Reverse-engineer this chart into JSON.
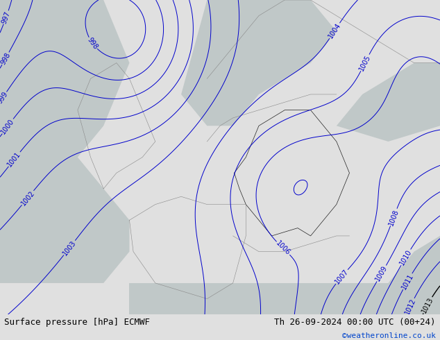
{
  "title_left": "Surface pressure [hPa] ECMWF",
  "title_right": "Th 26-09-2024 00:00 UTC (00+24)",
  "credit": "©weatheronline.co.uk",
  "land_color": "#c8e8b8",
  "sea_color": "#c0c8c8",
  "isobar_color_blue": "#0000cc",
  "isobar_color_black": "#000000",
  "isobar_color_red": "#cc0000",
  "font_size_label": 7,
  "font_size_title": 9,
  "font_size_credit": 8,
  "bottom_bar_color": "#e0e0e0"
}
